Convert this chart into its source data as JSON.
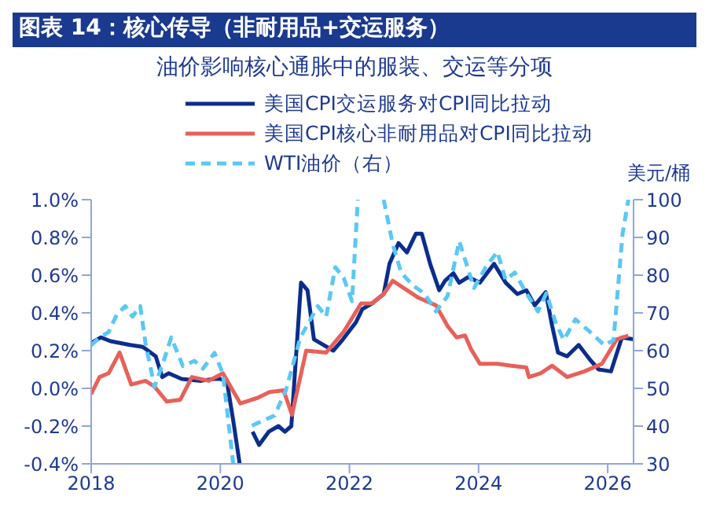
{
  "chart_data": {
    "type": "line",
    "title": "图表 14：核心传导（非耐用品+交运服务）",
    "subtitle": "油价影响核心通胀中的服装、交运等分项",
    "y2label": "美元/桶",
    "xlim": [
      2018,
      2026.4
    ],
    "xticks": [
      2018,
      2020,
      2022,
      2024,
      2026
    ],
    "ylim": [
      -0.4,
      1.0
    ],
    "yticks": [
      {
        "value": -0.4,
        "label": "-0.4%"
      },
      {
        "value": -0.2,
        "label": "-0.2%"
      },
      {
        "value": 0,
        "label": "0.0%"
      },
      {
        "value": 0.2,
        "label": "0.2%"
      },
      {
        "value": 0.4,
        "label": "0.4%"
      },
      {
        "value": 0.6,
        "label": "0.6%"
      },
      {
        "value": 0.8,
        "label": "0.8%"
      },
      {
        "value": 1.0,
        "label": "1.0%"
      }
    ],
    "y2lim": [
      30,
      100
    ],
    "y2ticks": [
      30,
      40,
      50,
      60,
      70,
      80,
      90,
      100
    ],
    "legend": "top",
    "marker": "none",
    "series": [
      {
        "name": "美国CPI交运服务对CPI同比拉动",
        "color": "#0b2d8c",
        "line_style": "solid",
        "x": [
          2018.0,
          2018.15,
          2018.3,
          2018.6,
          2018.8,
          2019.0,
          2019.1,
          2019.2,
          2019.4,
          2019.7,
          2019.9,
          2020.0,
          2020.1,
          2020.2,
          2020.3,
          2020.4,
          2020.5,
          2020.6,
          2020.75,
          2020.9,
          2021.0,
          2021.1,
          2021.25,
          2021.35,
          2021.45,
          2021.6,
          2021.75,
          2021.9,
          2022.1,
          2022.2,
          2022.35,
          2022.53,
          2022.62,
          2022.76,
          2022.89,
          2023.03,
          2023.12,
          2023.25,
          2023.39,
          2023.48,
          2023.61,
          2023.7,
          2023.84,
          2024.02,
          2024.24,
          2024.42,
          2024.6,
          2024.74,
          2024.87,
          2025.04,
          2025.14,
          2025.23,
          2025.37,
          2025.55,
          2025.73,
          2025.86,
          2026.05,
          2026.22,
          2026.4
        ],
        "values": [
          0.24,
          0.27,
          0.25,
          0.23,
          0.22,
          0.17,
          0.06,
          0.08,
          0.05,
          0.04,
          0.05,
          0.05,
          0.04,
          -0.17,
          -0.4,
          null,
          -0.23,
          -0.3,
          -0.23,
          -0.2,
          -0.23,
          -0.2,
          0.56,
          0.52,
          0.26,
          0.23,
          0.2,
          0.26,
          0.35,
          0.42,
          0.45,
          0.5,
          0.66,
          0.77,
          0.72,
          0.82,
          0.82,
          0.66,
          0.52,
          0.57,
          0.61,
          0.56,
          0.59,
          0.56,
          0.66,
          0.56,
          0.5,
          0.52,
          0.44,
          0.51,
          0.33,
          0.19,
          0.17,
          0.23,
          0.15,
          0.1,
          0.09,
          0.27,
          0.26
        ]
      },
      {
        "name": "美国CPI核心非耐用品对CPI同比拉动",
        "color": "#e8605a",
        "line_style": "solid",
        "x": [
          2018.0,
          2018.13,
          2018.27,
          2018.44,
          2018.62,
          2018.84,
          2018.98,
          2019.17,
          2019.38,
          2019.56,
          2019.82,
          2020.04,
          2020.31,
          2020.58,
          2020.76,
          2020.98,
          2021.11,
          2021.2,
          2021.33,
          2021.64,
          2021.91,
          2022.18,
          2022.35,
          2022.53,
          2022.67,
          2022.85,
          2023.07,
          2023.34,
          2023.52,
          2023.66,
          2023.79,
          2023.88,
          2024.02,
          2024.29,
          2024.51,
          2024.74,
          2024.78,
          2024.96,
          2025.14,
          2025.37,
          2025.64,
          2025.91,
          2026.14,
          2026.32
        ],
        "values": [
          -0.03,
          0.06,
          0.08,
          0.19,
          0.02,
          0.04,
          0.01,
          -0.07,
          -0.06,
          0.06,
          0.04,
          0.08,
          -0.08,
          -0.05,
          -0.02,
          -0.01,
          -0.14,
          0.0,
          0.2,
          0.19,
          0.3,
          0.45,
          0.45,
          0.5,
          0.57,
          0.53,
          0.48,
          0.44,
          0.33,
          0.27,
          0.28,
          0.21,
          0.13,
          0.13,
          0.12,
          0.11,
          0.06,
          0.08,
          0.12,
          0.06,
          0.09,
          0.13,
          0.26,
          0.28
        ]
      },
      {
        "name": "WTI油价（右）",
        "color": "#5bc8f5",
        "axis": "y2",
        "line_style": "dashed",
        "x": [
          2018.0,
          2018.13,
          2018.27,
          2018.4,
          2018.53,
          2018.64,
          2018.76,
          2018.84,
          2018.98,
          2019.11,
          2019.24,
          2019.42,
          2019.6,
          2019.73,
          2019.91,
          2020.04,
          2020.2,
          2020.3,
          2020.49,
          2020.67,
          2020.84,
          2021.02,
          2021.24,
          2021.51,
          2021.64,
          2021.78,
          2021.91,
          2022.04,
          2022.13,
          2022.3,
          2022.53,
          2022.67,
          2022.8,
          2022.98,
          2023.16,
          2023.34,
          2023.52,
          2023.7,
          2023.93,
          2024.11,
          2024.29,
          2024.42,
          2024.56,
          2024.74,
          2024.92,
          2025.05,
          2025.19,
          2025.32,
          2025.5,
          2025.73,
          2025.95,
          2026.09,
          2026.23,
          2026.32
        ],
        "values": [
          61.4,
          63.5,
          64.9,
          69.7,
          71.8,
          69.0,
          71.8,
          62.1,
          50.4,
          56.6,
          63.5,
          55.9,
          57.3,
          55.2,
          59.4,
          53.9,
          30,
          null,
          40.1,
          41.5,
          42.8,
          49.7,
          63.5,
          71.8,
          69.0,
          82.1,
          79.3,
          73.1,
          100,
          null,
          100,
          88.3,
          80.7,
          77.3,
          75.2,
          70.4,
          74.5,
          89.0,
          76.6,
          82.1,
          86.2,
          78.7,
          80.7,
          75.2,
          70.4,
          75.2,
          67.6,
          62.8,
          68.3,
          64.9,
          61.4,
          62.8,
          91.0,
          100
        ]
      }
    ]
  }
}
